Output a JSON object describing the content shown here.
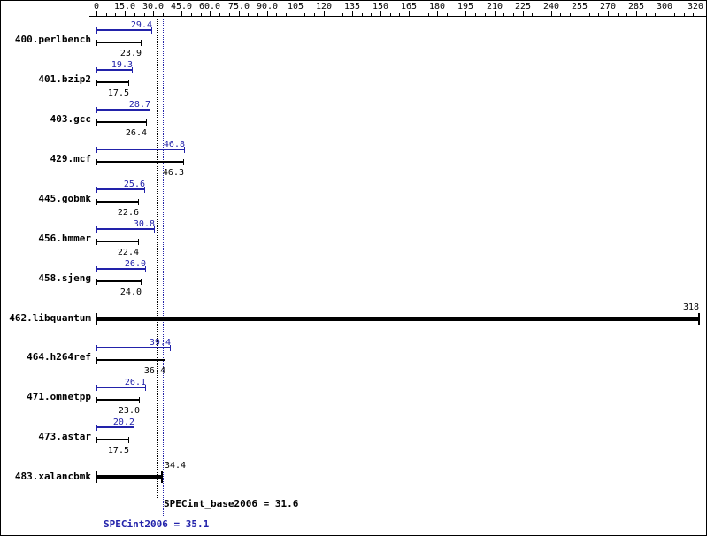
{
  "chart_data": {
    "type": "bar",
    "orientation": "horizontal",
    "title": "",
    "axis": {
      "min": 0,
      "max": 320,
      "position": "top",
      "ticks": [
        {
          "value": 0,
          "label": "0"
        },
        {
          "value": 15,
          "label": "15.0"
        },
        {
          "value": 30,
          "label": "30.0"
        },
        {
          "value": 45,
          "label": "45.0"
        },
        {
          "value": 60,
          "label": "60.0"
        },
        {
          "value": 75,
          "label": "75.0"
        },
        {
          "value": 90,
          "label": "90.0"
        },
        {
          "value": 105,
          "label": "105"
        },
        {
          "value": 120,
          "label": "120"
        },
        {
          "value": 135,
          "label": "135"
        },
        {
          "value": 150,
          "label": "150"
        },
        {
          "value": 165,
          "label": "165"
        },
        {
          "value": 180,
          "label": "180"
        },
        {
          "value": 195,
          "label": "195"
        },
        {
          "value": 210,
          "label": "210"
        },
        {
          "value": 225,
          "label": "225"
        },
        {
          "value": 240,
          "label": "240"
        },
        {
          "value": 255,
          "label": "255"
        },
        {
          "value": 270,
          "label": "270"
        },
        {
          "value": 285,
          "label": "285"
        },
        {
          "value": 300,
          "label": "300"
        },
        {
          "value": 320,
          "label": "320"
        }
      ]
    },
    "colors": {
      "peak": "#2222aa",
      "base": "#000000"
    },
    "series": [
      {
        "name": "SPECint2006 (peak)",
        "color": "#2222aa"
      },
      {
        "name": "SPECint_base2006 (base)",
        "color": "#000000"
      }
    ],
    "benchmarks": [
      {
        "name": "400.perlbench",
        "peak": "29.4",
        "base": "23.9"
      },
      {
        "name": "401.bzip2",
        "peak": "19.3",
        "base": "17.5"
      },
      {
        "name": "403.gcc",
        "peak": "28.7",
        "base": "26.4"
      },
      {
        "name": "429.mcf",
        "peak": "46.8",
        "base": "46.3"
      },
      {
        "name": "445.gobmk",
        "peak": "25.6",
        "base": "22.6"
      },
      {
        "name": "456.hmmer",
        "peak": "30.8",
        "base": "22.4"
      },
      {
        "name": "458.sjeng",
        "peak": "26.0",
        "base": "24.0"
      },
      {
        "name": "462.libquantum",
        "single": "318"
      },
      {
        "name": "464.h264ref",
        "peak": "39.4",
        "base": "36.4"
      },
      {
        "name": "471.omnetpp",
        "peak": "26.1",
        "base": "23.0"
      },
      {
        "name": "473.astar",
        "peak": "20.2",
        "base": "17.5"
      },
      {
        "name": "483.xalancbmk",
        "single": "34.4"
      }
    ],
    "reference_lines": [
      {
        "series": "base",
        "value": 31.6
      },
      {
        "series": "peak",
        "value": 35.1
      }
    ]
  },
  "footer": {
    "base_label": "SPECint_base2006 = 31.6",
    "peak_label": "SPECint2006 = 35.1"
  }
}
